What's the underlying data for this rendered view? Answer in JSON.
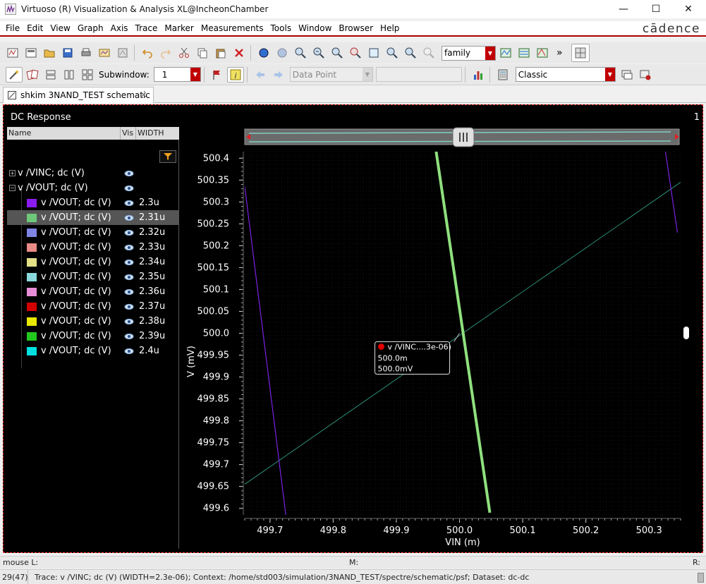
{
  "window": {
    "title": "Virtuoso (R) Visualization & Analysis XL@IncheonChamber",
    "minimize": "—",
    "maximize": "☐",
    "close": "✕"
  },
  "menu": {
    "items": [
      "File",
      "Edit",
      "View",
      "Graph",
      "Axis",
      "Trace",
      "Marker",
      "Measurements",
      "Tools",
      "Window",
      "Browser",
      "Help"
    ],
    "brand": "cādence"
  },
  "toolbar1": {
    "family_select": "family",
    "overflow": "»"
  },
  "toolbar2": {
    "subwindow_label": "Subwindow:",
    "subwindow_value": "1",
    "data_point_select": "Data Point",
    "style_select": "Classic"
  },
  "tabs": [
    {
      "label": "shkim 3NAND_TEST schematic",
      "close": "✕"
    }
  ],
  "panel": {
    "title": "DC Response",
    "number": "1"
  },
  "trace_list": {
    "columns": [
      "Name",
      "Vis",
      "WIDTH"
    ],
    "groups": [
      {
        "name": "v /VINC; dc (V)",
        "expander": "+"
      },
      {
        "name": "v /VOUT; dc (V)",
        "expander": "−"
      }
    ],
    "traces": [
      {
        "name": "v /VOUT; dc (V)",
        "width": "2.3u",
        "color": "#8a1cf0"
      },
      {
        "name": "v /VOUT; dc (V)",
        "width": "2.31u",
        "color": "#6fc77a"
      },
      {
        "name": "v /VOUT; dc (V)",
        "width": "2.32u",
        "color": "#7f83e6"
      },
      {
        "name": "v /VOUT; dc (V)",
        "width": "2.33u",
        "color": "#e88a86"
      },
      {
        "name": "v /VOUT; dc (V)",
        "width": "2.34u",
        "color": "#e3df86"
      },
      {
        "name": "v /VOUT; dc (V)",
        "width": "2.35u",
        "color": "#8ad8dc"
      },
      {
        "name": "v /VOUT; dc (V)",
        "width": "2.36u",
        "color": "#e88ed8"
      },
      {
        "name": "v /VOUT; dc (V)",
        "width": "2.37u",
        "color": "#d40000"
      },
      {
        "name": "v /VOUT; dc (V)",
        "width": "2.38u",
        "color": "#e8e800"
      },
      {
        "name": "v /VOUT; dc (V)",
        "width": "2.39u",
        "color": "#22c81e"
      },
      {
        "name": "v /VOUT; dc (V)",
        "width": "2.4u",
        "color": "#00e0e0"
      }
    ]
  },
  "chart_data": {
    "type": "line",
    "title": "DC Response",
    "xlabel": "VIN (m)",
    "ylabel": "V (mV)",
    "xlim": [
      499.66,
      500.35
    ],
    "ylim": [
      499.585,
      500.415
    ],
    "x_ticks": [
      "499.7",
      "499.8",
      "499.9",
      "500.0",
      "500.1",
      "500.2",
      "500.3"
    ],
    "y_ticks": [
      "500.4",
      "500.35",
      "500.3",
      "500.25",
      "500.2",
      "500.15",
      "500.1",
      "500.05",
      "500.0",
      "499.95",
      "499.9",
      "499.85",
      "499.8",
      "499.75",
      "499.7",
      "499.65",
      "499.6"
    ],
    "series": [
      {
        "name": "v /VINC; dc (V)",
        "x": [
          499.66,
          500.35
        ],
        "y": [
          499.655,
          500.345
        ],
        "color": "#2e9c86"
      },
      {
        "name": "v /VOUT; dc (V) WIDTH=2.3u",
        "x": [
          499.66,
          499.725
        ],
        "y": [
          500.335,
          499.585
        ],
        "color": "#7a22e0"
      },
      {
        "name": "v /VOUT; dc (V) WIDTH=2.31u",
        "x": [
          499.963,
          500.048
        ],
        "y": [
          500.415,
          499.59
        ],
        "color": "#8fe07e"
      },
      {
        "name": "v /VOUT; dc (V) WIDTH=2.32u",
        "x": [
          500.326,
          500.345
        ],
        "y": [
          500.415,
          500.23
        ],
        "color": "#7a22e0"
      }
    ],
    "marker": {
      "label": "v /VINC....3e-06)",
      "x_text": "500.0m",
      "y_text": "500.0mV",
      "x": 500.0,
      "y": 500.0
    }
  },
  "status": {
    "mouse_label": "mouse L:",
    "m_label": "M:",
    "r_label": "R:",
    "counter": "29(47)",
    "message": "Trace: v /VINC; dc (V) (WIDTH=2.3e-06); Context: /home/std003/simulation/3NAND_TEST/spectre/schematic/psf; Dataset: dc-dc"
  }
}
